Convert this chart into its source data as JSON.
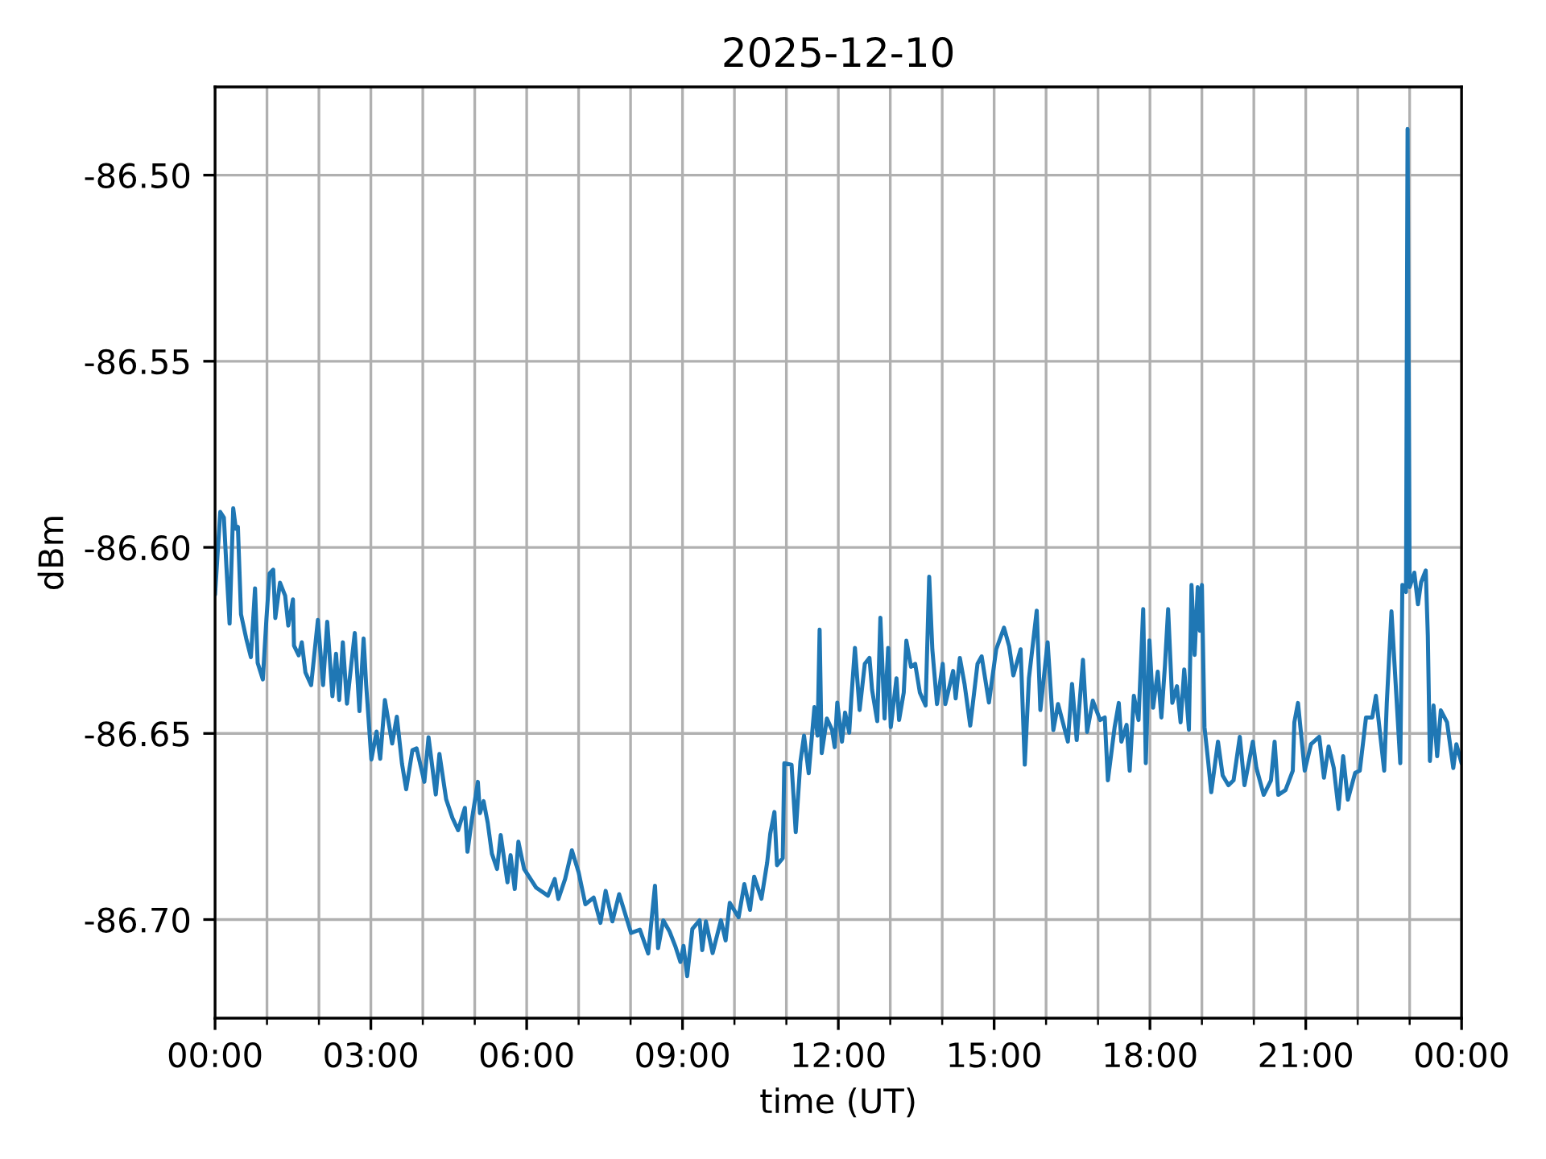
{
  "chart_data": {
    "type": "line",
    "title": "2025-12-10",
    "xlabel": "time (UT)",
    "ylabel": "dBm",
    "grid": true,
    "line_style": "solid",
    "xlim": [
      0,
      24
    ],
    "ylim": [
      -86.7265,
      -86.4763
    ],
    "xticks": [
      {
        "value": 0,
        "label": "00:00"
      },
      {
        "value": 1,
        "label": null
      },
      {
        "value": 2,
        "label": null
      },
      {
        "value": 3,
        "label": "03:00"
      },
      {
        "value": 4,
        "label": null
      },
      {
        "value": 5,
        "label": null
      },
      {
        "value": 6,
        "label": "06:00"
      },
      {
        "value": 7,
        "label": null
      },
      {
        "value": 8,
        "label": null
      },
      {
        "value": 9,
        "label": "09:00"
      },
      {
        "value": 10,
        "label": null
      },
      {
        "value": 11,
        "label": null
      },
      {
        "value": 12,
        "label": "12:00"
      },
      {
        "value": 13,
        "label": null
      },
      {
        "value": 14,
        "label": null
      },
      {
        "value": 15,
        "label": "15:00"
      },
      {
        "value": 16,
        "label": null
      },
      {
        "value": 17,
        "label": null
      },
      {
        "value": 18,
        "label": "18:00"
      },
      {
        "value": 19,
        "label": null
      },
      {
        "value": 20,
        "label": null
      },
      {
        "value": 21,
        "label": "21:00"
      },
      {
        "value": 22,
        "label": null
      },
      {
        "value": 23,
        "label": null
      },
      {
        "value": 24,
        "label": "00:00"
      }
    ],
    "yticks": [
      {
        "value": -86.5,
        "label": "-86.50"
      },
      {
        "value": -86.55,
        "label": "-86.55"
      },
      {
        "value": -86.6,
        "label": "-86.60"
      },
      {
        "value": -86.65,
        "label": "-86.65"
      },
      {
        "value": -86.7,
        "label": "-86.70"
      }
    ],
    "x": [
      0,
      0.1,
      0.17,
      0.22,
      0.28,
      0.35,
      0.4,
      0.44,
      0.5,
      0.6,
      0.69,
      0.77,
      0.82,
      0.92,
      0.99,
      1.05,
      1.12,
      1.16,
      1.25,
      1.35,
      1.41,
      1.5,
      1.52,
      1.61,
      1.67,
      1.74,
      1.85,
      1.98,
      2.08,
      2.16,
      2.26,
      2.33,
      2.39,
      2.46,
      2.54,
      2.69,
      2.78,
      2.86,
      2.91,
      3.01,
      3.11,
      3.18,
      3.27,
      3.41,
      3.5,
      3.6,
      3.68,
      3.8,
      3.88,
      4.03,
      4.11,
      4.25,
      4.32,
      4.45,
      4.57,
      4.68,
      4.81,
      4.86,
      4.94,
      5.06,
      5.1,
      5.17,
      5.25,
      5.33,
      5.43,
      5.5,
      5.63,
      5.69,
      5.77,
      5.84,
      5.95,
      6.18,
      6.41,
      6.54,
      6.61,
      6.74,
      6.87,
      7.0,
      7.13,
      7.29,
      7.42,
      7.52,
      7.65,
      7.78,
      8.01,
      8.18,
      8.34,
      8.47,
      8.53,
      8.63,
      8.75,
      8.86,
      8.96,
      9.02,
      9.09,
      9.19,
      9.33,
      9.38,
      9.45,
      9.58,
      9.74,
      9.83,
      9.91,
      10.08,
      10.19,
      10.3,
      10.38,
      10.52,
      10.63,
      10.69,
      10.77,
      10.82,
      10.93,
      10.96,
      11.1,
      11.18,
      11.27,
      11.34,
      11.43,
      11.54,
      11.6,
      11.64,
      11.68,
      11.78,
      11.88,
      11.93,
      11.98,
      12.07,
      12.13,
      12.21,
      12.25,
      12.32,
      12.41,
      12.51,
      12.6,
      12.65,
      12.75,
      12.81,
      12.89,
      12.96,
      13.01,
      13.12,
      13.17,
      13.26,
      13.31,
      13.4,
      13.48,
      13.57,
      13.68,
      13.75,
      13.81,
      13.9,
      14.01,
      14.06,
      14.21,
      14.26,
      14.34,
      14.43,
      14.54,
      14.68,
      14.76,
      14.9,
      15.04,
      15.19,
      15.29,
      15.37,
      15.51,
      15.59,
      15.67,
      15.82,
      15.89,
      16.03,
      16.14,
      16.23,
      16.42,
      16.5,
      16.59,
      16.71,
      16.79,
      16.9,
      17.04,
      17.13,
      17.19,
      17.32,
      17.4,
      17.45,
      17.55,
      17.61,
      17.69,
      17.78,
      17.87,
      17.92,
      17.99,
      18.06,
      18.15,
      18.22,
      18.29,
      18.35,
      18.43,
      18.52,
      18.59,
      18.66,
      18.75,
      18.8,
      18.86,
      18.92,
      18.96,
      19.0,
      19.05,
      19.12,
      19.18,
      19.31,
      19.4,
      19.51,
      19.61,
      19.73,
      19.82,
      19.98,
      20.05,
      20.19,
      20.33,
      20.4,
      20.47,
      20.61,
      20.75,
      20.78,
      20.85,
      20.98,
      21.1,
      21.26,
      21.35,
      21.44,
      21.54,
      21.63,
      21.72,
      21.81,
      21.95,
      22.04,
      22.16,
      22.28,
      22.35,
      22.51,
      22.56,
      22.65,
      22.72,
      22.82,
      22.86,
      22.93,
      22.96,
      23.0,
      23.09,
      23.16,
      23.22,
      23.31,
      23.35,
      23.39,
      23.46,
      23.53,
      23.6,
      23.72,
      23.84,
      23.9,
      24.0
    ],
    "series": [
      {
        "color": "#1f77b4",
        "values": [
          -86.6127,
          -86.5905,
          -86.592,
          -86.6055,
          -86.6205,
          -86.5895,
          -86.595,
          -86.5945,
          -86.618,
          -86.6245,
          -86.6295,
          -86.611,
          -86.631,
          -86.6355,
          -86.619,
          -86.607,
          -86.606,
          -86.619,
          -86.6095,
          -86.613,
          -86.621,
          -86.614,
          -86.6264,
          -86.629,
          -86.6255,
          -86.6336,
          -86.637,
          -86.6195,
          -86.637,
          -86.62,
          -86.64,
          -86.6286,
          -86.641,
          -86.6255,
          -86.642,
          -86.623,
          -86.644,
          -86.6245,
          -86.637,
          -86.657,
          -86.6495,
          -86.6568,
          -86.641,
          -86.6527,
          -86.6455,
          -86.6582,
          -86.665,
          -86.6545,
          -86.654,
          -86.663,
          -86.651,
          -86.6664,
          -86.6555,
          -86.6677,
          -86.6727,
          -86.676,
          -86.67,
          -86.6818,
          -86.6736,
          -86.663,
          -86.6714,
          -86.6682,
          -86.674,
          -86.6823,
          -86.6864,
          -86.6773,
          -86.69,
          -86.6827,
          -86.6918,
          -86.6791,
          -86.6864,
          -86.6914,
          -86.6936,
          -86.6891,
          -86.6945,
          -86.6891,
          -86.6814,
          -86.6873,
          -86.6959,
          -86.6941,
          -86.7009,
          -86.6923,
          -86.7005,
          -86.6932,
          -86.7036,
          -86.7027,
          -86.7091,
          -86.6909,
          -86.7077,
          -86.7002,
          -86.7032,
          -86.7071,
          -86.7114,
          -86.7071,
          -86.7152,
          -86.7025,
          -86.7002,
          -86.7082,
          -86.7005,
          -86.709,
          -86.7002,
          -86.7056,
          -86.6955,
          -86.6994,
          -86.6905,
          -86.6974,
          -86.6885,
          -86.6944,
          -86.6847,
          -86.6769,
          -86.6711,
          -86.6854,
          -86.6835,
          -86.658,
          -86.6584,
          -86.6765,
          -86.6576,
          -86.6506,
          -86.6607,
          -86.6429,
          -86.6506,
          -86.6221,
          -86.6553,
          -86.646,
          -86.6491,
          -86.6537,
          -86.6417,
          -86.6522,
          -86.6444,
          -86.6498,
          -86.6406,
          -86.627,
          -86.6437,
          -86.6313,
          -86.6297,
          -86.6383,
          -86.6467,
          -86.6189,
          -86.646,
          -86.627,
          -86.6483,
          -86.6352,
          -86.6464,
          -86.639,
          -86.6251,
          -86.6321,
          -86.6313,
          -86.639,
          -86.6425,
          -86.6079,
          -86.6274,
          -86.6421,
          -86.6313,
          -86.6421,
          -86.6332,
          -86.6406,
          -86.6297,
          -86.6367,
          -86.6479,
          -86.6313,
          -86.6293,
          -86.6417,
          -86.6274,
          -86.6216,
          -86.6266,
          -86.6344,
          -86.6274,
          -86.6584,
          -86.6352,
          -86.617,
          -86.6437,
          -86.6255,
          -86.6491,
          -86.6421,
          -86.6522,
          -86.6367,
          -86.6518,
          -86.6302,
          -86.6496,
          -86.6412,
          -86.6464,
          -86.6457,
          -86.6626,
          -86.6483,
          -86.6418,
          -86.6522,
          -86.6477,
          -86.66,
          -86.6399,
          -86.6464,
          -86.6166,
          -86.658,
          -86.625,
          -86.6431,
          -86.6334,
          -86.6457,
          -86.6315,
          -86.6166,
          -86.6418,
          -86.6373,
          -86.647,
          -86.6328,
          -86.649,
          -86.6101,
          -86.6289,
          -86.6107,
          -86.6224,
          -86.6101,
          -86.6483,
          -86.6574,
          -86.6658,
          -86.6522,
          -86.6613,
          -86.6639,
          -86.6626,
          -86.6509,
          -86.6639,
          -86.6522,
          -86.6593,
          -86.6665,
          -86.6626,
          -86.6522,
          -86.6665,
          -86.6652,
          -86.66,
          -86.647,
          -86.6418,
          -86.66,
          -86.6529,
          -86.6509,
          -86.6619,
          -86.6535,
          -86.6593,
          -86.6703,
          -86.6561,
          -86.6678,
          -86.6606,
          -86.66,
          -86.6457,
          -86.6457,
          -86.6399,
          -86.66,
          -86.6418,
          -86.6172,
          -86.6341,
          -86.658,
          -86.6101,
          -86.612,
          -86.4876,
          -86.6107,
          -86.6068,
          -86.6153,
          -86.6094,
          -86.6062,
          -86.6237,
          -86.6574,
          -86.6425,
          -86.6561,
          -86.6438,
          -86.647,
          -86.6593,
          -86.6529,
          -86.658
        ]
      }
    ]
  }
}
